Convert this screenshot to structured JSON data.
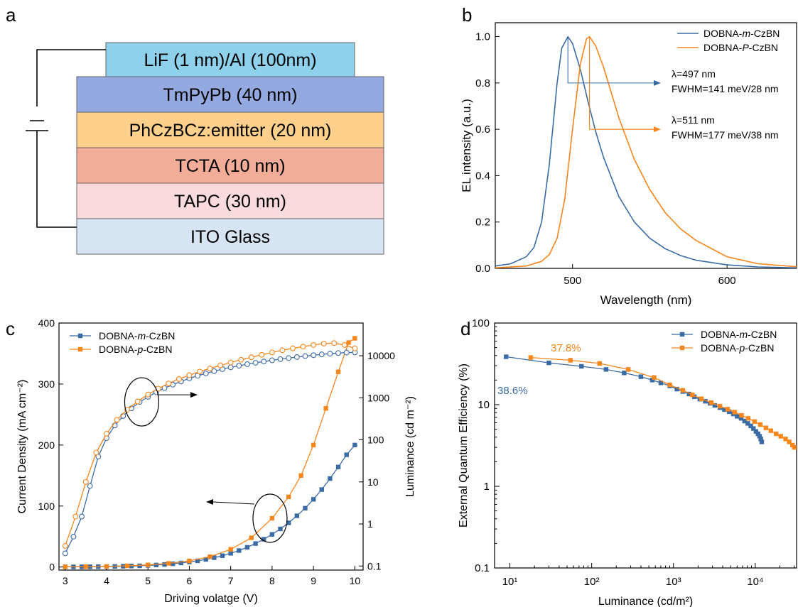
{
  "panel_labels": [
    "a",
    "b",
    "c",
    "d"
  ],
  "device_stack": {
    "layers": [
      {
        "label": "LiF (1 nm)/Al (100nm)",
        "color": "#8fd0ea"
      },
      {
        "label": "TmPyPb (40 nm)",
        "color": "#93a9e0"
      },
      {
        "label": "PhCzBCz:emitter (20 nm)",
        "color": "#ffcf8c"
      },
      {
        "label": "TCTA (10 nm)",
        "color": "#f3ac98"
      },
      {
        "label": "TAPC (30 nm)",
        "color": "#f9dadd"
      },
      {
        "label": "ITO Glass",
        "color": "#d7e4f4"
      }
    ]
  },
  "colors": {
    "blue": "#3b6ba5",
    "orange": "#f7861c"
  },
  "chart_data": [
    {
      "panel": "b",
      "type": "line",
      "xlabel": "Wavelength (nm)",
      "ylabel": "EL intensity (a.u.)",
      "xlim": [
        450,
        645
      ],
      "ylim": [
        0,
        1.06
      ],
      "xticks": [
        500,
        600
      ],
      "yticks": [
        0.0,
        0.2,
        0.4,
        0.6,
        0.8,
        1.0
      ],
      "legend": "top-right",
      "series": [
        {
          "name": "DOBNA-m-CzBN",
          "name_prefix": "DOBNA-",
          "name_italic": "m",
          "name_suffix": "-CzBN",
          "color": "#3b6ba5",
          "x": [
            450,
            460,
            470,
            475,
            480,
            485,
            490,
            493,
            497,
            500,
            505,
            510,
            515,
            520,
            530,
            540,
            550,
            560,
            570,
            580,
            600,
            620,
            645
          ],
          "y": [
            0.01,
            0.02,
            0.05,
            0.09,
            0.2,
            0.45,
            0.8,
            0.95,
            1.0,
            0.97,
            0.86,
            0.72,
            0.59,
            0.48,
            0.31,
            0.2,
            0.13,
            0.085,
            0.055,
            0.035,
            0.015,
            0.006,
            0.002
          ]
        },
        {
          "name": "DOBNA-P-CzBN",
          "name_prefix": "DOBNA-",
          "name_italic": "P",
          "name_suffix": "-CzBN",
          "color": "#f7861c",
          "x": [
            450,
            470,
            480,
            485,
            490,
            495,
            500,
            505,
            509,
            511,
            515,
            520,
            530,
            540,
            550,
            560,
            570,
            580,
            600,
            620,
            645
          ],
          "y": [
            0.002,
            0.01,
            0.03,
            0.06,
            0.13,
            0.3,
            0.6,
            0.88,
            0.99,
            1.0,
            0.96,
            0.87,
            0.65,
            0.47,
            0.34,
            0.24,
            0.17,
            0.12,
            0.05,
            0.02,
            0.007
          ]
        }
      ],
      "annotations": [
        {
          "lines": [
            "λ=497 nm",
            "FWHM=141 meV/28 nm"
          ],
          "x": 497,
          "y_start": 1.0,
          "y_end": 0.8,
          "color": "#3b6ba5"
        },
        {
          "lines": [
            "λ=511 nm",
            "FWHM=177 meV/38 nm"
          ],
          "x": 511,
          "y_start": 1.0,
          "y_end": 0.6,
          "color": "#f7861c"
        }
      ]
    },
    {
      "panel": "c",
      "type": "line",
      "xlabel": "Driving volatge (V)",
      "ylabel": "Current Density (mA cm⁻²)",
      "y2label": "Luminance (cd m⁻²)",
      "xlim": [
        2.85,
        10.2
      ],
      "ylim": [
        -5,
        400
      ],
      "y2lim": [
        0.08,
        60000
      ],
      "y2scale": "log",
      "xticks": [
        3,
        4,
        5,
        6,
        7,
        8,
        9,
        10
      ],
      "yticks": [
        0,
        100,
        200,
        300,
        400
      ],
      "y2ticks": [
        0.1,
        1,
        10,
        100,
        1000,
        10000
      ],
      "y2ticklabels": [
        "0.1",
        "1",
        "10",
        "100",
        "1000",
        "10000"
      ],
      "legend": "top-left",
      "series": [
        {
          "name": "DOBNA-m-CzBN",
          "name_prefix": "DOBNA-",
          "name_italic": "m",
          "name_suffix": "-CzBN",
          "color": "#3b6ba5",
          "axis": "left",
          "marker": "filled-square",
          "x": [
            3.0,
            3.2,
            3.4,
            3.6,
            3.8,
            4.0,
            4.2,
            4.4,
            4.6,
            4.8,
            5.0,
            5.2,
            5.4,
            5.6,
            5.8,
            6.0,
            6.2,
            6.4,
            6.6,
            6.8,
            7.0,
            7.2,
            7.4,
            7.6,
            7.8,
            8.0,
            8.2,
            8.4,
            8.6,
            8.8,
            9.0,
            9.2,
            9.4,
            9.6,
            9.8,
            10.0
          ],
          "y": [
            0.3,
            0.3,
            0.4,
            0.5,
            0.6,
            0.8,
            1.0,
            1.3,
            1.6,
            2.0,
            2.6,
            3.3,
            4.2,
            5.3,
            6.7,
            8.3,
            10.2,
            12.5,
            15.3,
            18.6,
            22.5,
            27.0,
            32.3,
            38.5,
            45.5,
            53.5,
            62.5,
            72.5,
            84.0,
            96.5,
            111.0,
            127.0,
            145.0,
            164.0,
            184.0,
            200.0
          ]
        },
        {
          "name": "DOBNA-p-CzBN",
          "name_prefix": "DOBNA-",
          "name_italic": "p",
          "name_suffix": "-CzBN",
          "color": "#f7861c",
          "axis": "left",
          "marker": "filled-square",
          "x": [
            3.0,
            3.5,
            4.0,
            4.5,
            5.0,
            5.5,
            6.0,
            6.5,
            7.0,
            7.5,
            8.0,
            8.4,
            8.7,
            9.0,
            9.3,
            9.6,
            9.85,
            10.0
          ],
          "y": [
            0.4,
            0.6,
            1.0,
            2.0,
            3.5,
            6.0,
            10.0,
            17.0,
            29.0,
            48.0,
            80.0,
            115.0,
            150.0,
            200.0,
            260.0,
            320.0,
            368.0,
            375.0
          ]
        },
        {
          "name": "DOBNA-m-CzBN",
          "color": "#3b6ba5",
          "axis": "right",
          "marker": "open-circle",
          "x": [
            3.0,
            3.2,
            3.4,
            3.6,
            3.8,
            4.0,
            4.2,
            4.4,
            4.6,
            4.8,
            5.0,
            5.2,
            5.4,
            5.6,
            5.8,
            6.0,
            6.2,
            6.4,
            6.6,
            6.8,
            7.0,
            7.2,
            7.4,
            7.6,
            7.8,
            8.0,
            8.2,
            8.4,
            8.6,
            8.8,
            9.0,
            9.2,
            9.4,
            9.6,
            9.8,
            10.0
          ],
          "y": [
            0.2,
            0.5,
            1.5,
            8.0,
            40.0,
            110.0,
            220.0,
            370.0,
            560.0,
            800.0,
            1050.0,
            1350.0,
            1700.0,
            2050.0,
            2450.0,
            2900.0,
            3350.0,
            3800.0,
            4300.0,
            4800.0,
            5300.0,
            5800.0,
            6300.0,
            6800.0,
            7300.0,
            7800.0,
            8300.0,
            8800.0,
            9300.0,
            9800.0,
            10300.0,
            10800.0,
            11200.0,
            11600.0,
            11900.0,
            12000.0
          ]
        },
        {
          "name": "DOBNA-p-CzBN",
          "color": "#f7861c",
          "axis": "right",
          "marker": "open-circle",
          "x": [
            3.0,
            3.25,
            3.5,
            3.75,
            4.0,
            4.25,
            4.5,
            4.75,
            5.0,
            5.25,
            5.5,
            5.75,
            6.0,
            6.25,
            6.5,
            6.75,
            7.0,
            7.25,
            7.5,
            7.75,
            8.0,
            8.25,
            8.5,
            8.75,
            9.0,
            9.25,
            9.5,
            9.75,
            10.0
          ],
          "y": [
            0.3,
            1.5,
            10.0,
            50.0,
            140.0,
            300.0,
            520.0,
            820.0,
            1200.0,
            1650.0,
            2200.0,
            2800.0,
            3450.0,
            4200.0,
            5000.0,
            5900.0,
            6900.0,
            8000.0,
            9200.0,
            10500.0,
            12000.0,
            13500.0,
            15000.0,
            16500.0,
            18000.0,
            19500.0,
            20000.0,
            18000.0,
            15000.0
          ]
        }
      ],
      "annotations": [
        {
          "type": "ellipse",
          "cx": 4.85,
          "cy_right": 800,
          "target": "right-axis"
        },
        {
          "type": "ellipse",
          "cx": 7.95,
          "cy_left": 80,
          "target": "left-axis"
        }
      ]
    },
    {
      "panel": "d",
      "type": "line",
      "xlabel": "Luminance (cd/m²)",
      "ylabel": "External Quantum Efficiency (%)",
      "xscale": "log",
      "yscale": "log",
      "xlim": [
        6.5,
        32000
      ],
      "ylim": [
        0.1,
        100
      ],
      "xticks": [
        10,
        100,
        1000,
        10000
      ],
      "xticklabels": [
        "10¹",
        "10²",
        "10³",
        "10⁴"
      ],
      "yticks": [
        0.1,
        1,
        10,
        100
      ],
      "yticklabels": [
        "0.1",
        "1",
        "10",
        "100"
      ],
      "legend": "top-right",
      "series": [
        {
          "name": "DOBNA-m-CzBN",
          "name_prefix": "DOBNA-",
          "name_italic": "m",
          "name_suffix": "-CzBN",
          "color": "#3b6ba5",
          "marker": "filled-square",
          "x": [
            9,
            30,
            75,
            150,
            250,
            400,
            550,
            700,
            900,
            1100,
            1300,
            1550,
            1800,
            2100,
            2450,
            2800,
            3200,
            3700,
            4200,
            4800,
            5400,
            6000,
            6700,
            7400,
            8100,
            8800,
            9500,
            10200,
            10800,
            11300,
            11700,
            12000
          ],
          "y": [
            38.6,
            32.5,
            29.5,
            27.0,
            24.5,
            22.0,
            20.0,
            18.5,
            17.0,
            15.5,
            14.5,
            13.5,
            12.5,
            11.7,
            11.0,
            10.4,
            9.8,
            9.2,
            8.7,
            8.2,
            7.7,
            7.2,
            6.8,
            6.3,
            5.9,
            5.5,
            5.1,
            4.7,
            4.4,
            4.1,
            3.8,
            3.5
          ]
        },
        {
          "name": "DOBNA-p-CzBN",
          "name_prefix": "DOBNA-",
          "name_italic": "p",
          "name_suffix": "-CzBN",
          "color": "#f7861c",
          "marker": "filled-square",
          "x": [
            18,
            55,
            125,
            280,
            580,
            900,
            1300,
            1700,
            2200,
            2900,
            3700,
            4600,
            5600,
            6800,
            8200,
            9800,
            11500,
            13500,
            15500,
            18000,
            20500,
            23500,
            26000,
            28500,
            30000
          ],
          "y": [
            37.8,
            35.0,
            32.0,
            27.0,
            21.5,
            17.5,
            15.0,
            13.2,
            11.8,
            10.6,
            9.6,
            8.8,
            8.1,
            7.4,
            6.8,
            6.2,
            5.7,
            5.2,
            4.8,
            4.4,
            4.1,
            3.8,
            3.5,
            3.2,
            3.0
          ]
        }
      ],
      "annotations": [
        {
          "text": "38.6%",
          "color": "#3b6ba5"
        },
        {
          "text": "37.8%",
          "color": "#f7861c"
        }
      ]
    }
  ]
}
